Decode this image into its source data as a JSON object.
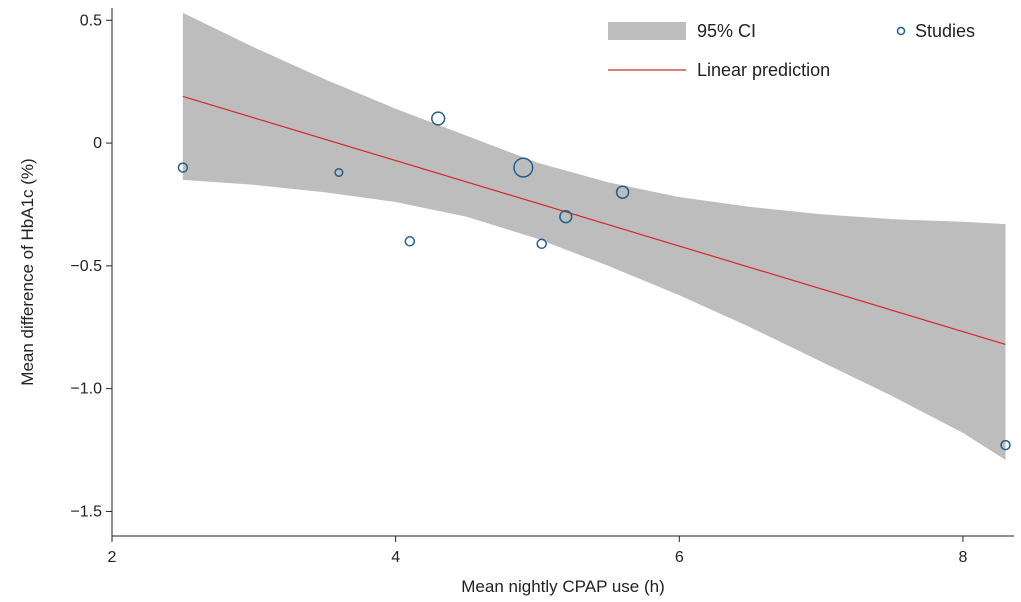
{
  "chart_data": {
    "type": "scatter",
    "xlabel": "Mean nightly CPAP use (h)",
    "ylabel": "Mean difference of HbA1c (%)",
    "xlim": [
      2,
      8.36
    ],
    "ylim": [
      -1.6,
      0.55
    ],
    "xticks": [
      2,
      4,
      6,
      8
    ],
    "yticks": [
      0.5,
      0,
      -0.5,
      -1.0,
      -1.5
    ],
    "xtick_labels": [
      "2",
      "4",
      "6",
      "8"
    ],
    "ytick_labels": [
      "0.5",
      "0",
      "−0.5",
      "−1.0",
      "−1.5"
    ],
    "grid": false,
    "legend_position": "top-right",
    "legend": {
      "ci_label": "95% CI",
      "points_label": "Studies",
      "line_label": "Linear prediction"
    },
    "colors": {
      "points": "#1f5f8f",
      "line": "#d62728",
      "ci_band": "#bdbdbd"
    },
    "series": [
      {
        "name": "Studies",
        "type": "scatter",
        "x": [
          2.5,
          3.6,
          4.1,
          4.3,
          4.9,
          5.03,
          5.2,
          5.6,
          8.3
        ],
        "y": [
          -0.1,
          -0.12,
          -0.4,
          0.1,
          -0.1,
          -0.41,
          -0.3,
          -0.2,
          -1.23
        ],
        "weights": [
          1.0,
          0.7,
          1.0,
          2.0,
          4.3,
          1.0,
          1.7,
          1.8,
          1.0
        ]
      },
      {
        "name": "Linear prediction",
        "type": "line",
        "x": [
          2.5,
          8.3
        ],
        "y": [
          0.19,
          -0.82
        ]
      },
      {
        "name": "95% CI",
        "type": "area",
        "x": [
          2.5,
          3.0,
          3.5,
          4.0,
          4.5,
          5.0,
          5.5,
          6.0,
          6.5,
          7.0,
          7.5,
          8.0,
          8.3
        ],
        "lower": [
          -0.15,
          -0.17,
          -0.2,
          -0.24,
          -0.3,
          -0.39,
          -0.5,
          -0.62,
          -0.75,
          -0.89,
          -1.03,
          -1.18,
          -1.29
        ],
        "upper": [
          0.53,
          0.39,
          0.26,
          0.14,
          0.03,
          -0.08,
          -0.16,
          -0.22,
          -0.26,
          -0.29,
          -0.31,
          -0.32,
          -0.33
        ]
      }
    ]
  }
}
